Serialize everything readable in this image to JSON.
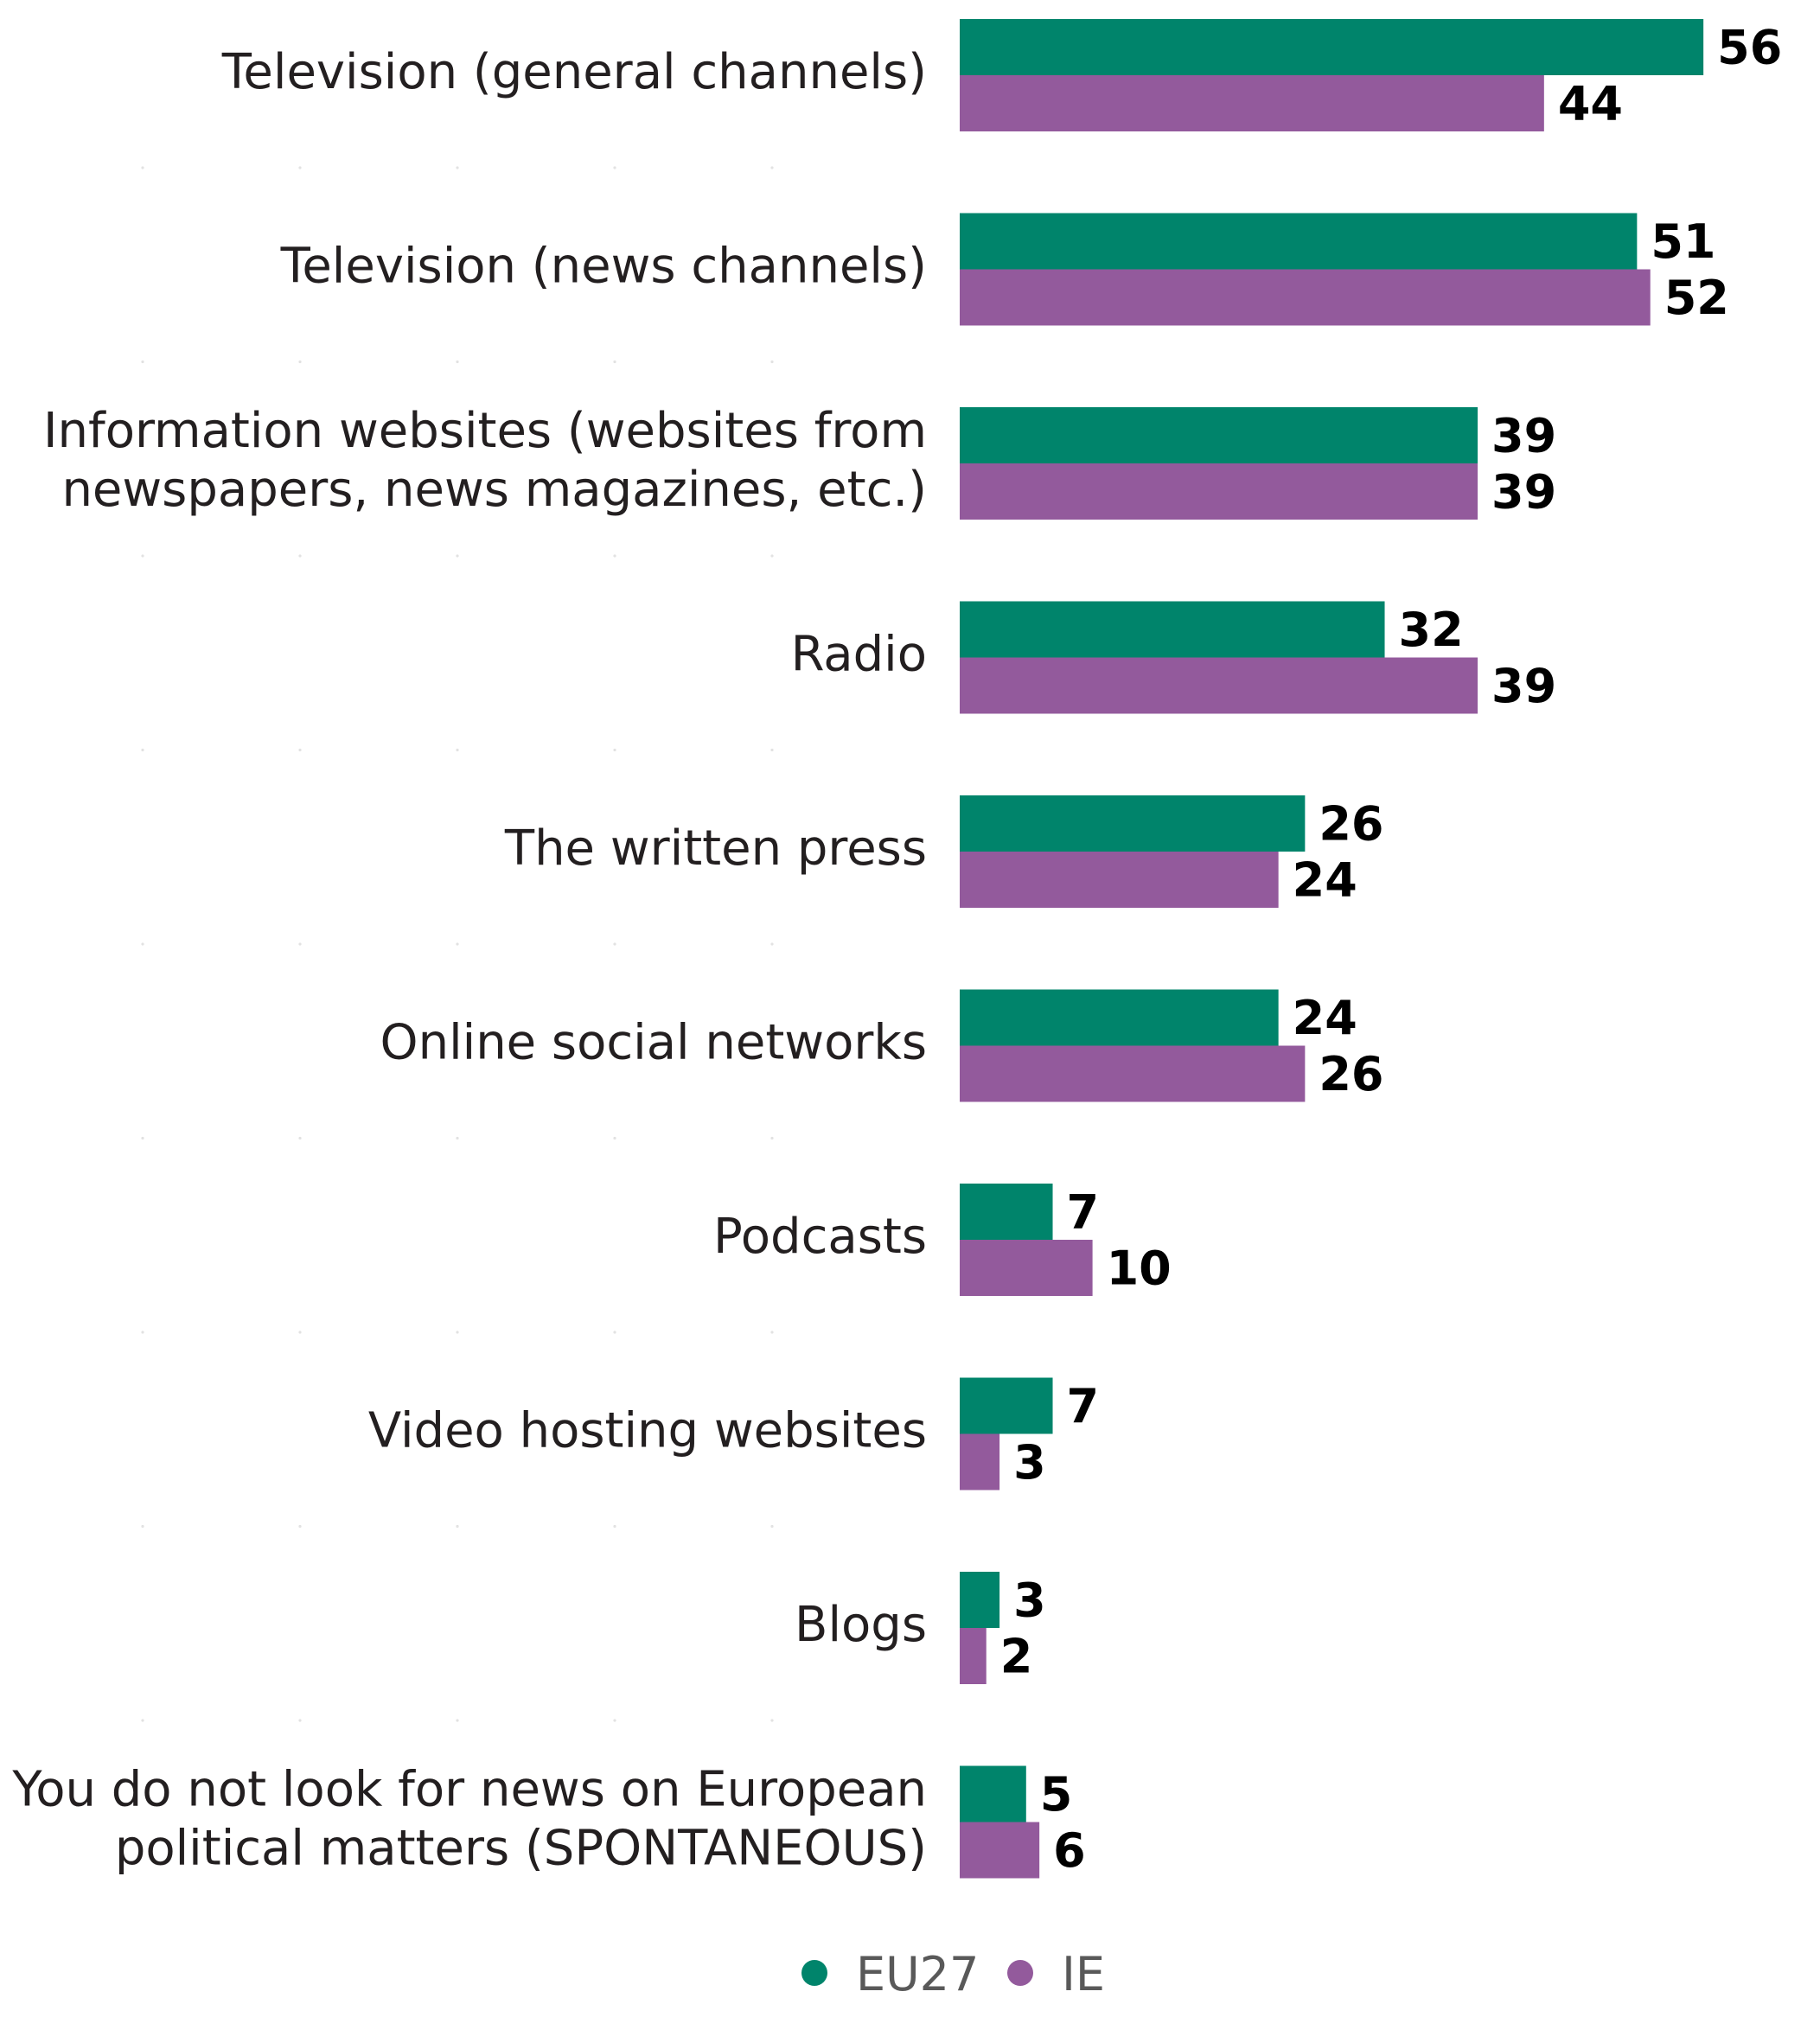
{
  "chart_data": {
    "type": "bar",
    "orientation": "horizontal",
    "categories": [
      [
        "Television (general channels)"
      ],
      [
        "Television (news channels)"
      ],
      [
        "Information websites (websites from",
        "newspapers, news magazines, etc.)"
      ],
      [
        "Radio"
      ],
      [
        "The written press"
      ],
      [
        "Online social networks"
      ],
      [
        "Podcasts"
      ],
      [
        "Video hosting websites"
      ],
      [
        "Blogs"
      ],
      [
        "You do not look for news on European",
        "political matters (SPONTANEOUS)"
      ]
    ],
    "series": [
      {
        "name": "EU27",
        "color": "#00846b",
        "values": [
          56,
          51,
          39,
          32,
          26,
          24,
          7,
          7,
          3,
          5
        ]
      },
      {
        "name": "IE",
        "color": "#935a9c",
        "values": [
          44,
          52,
          39,
          39,
          24,
          26,
          10,
          3,
          2,
          6
        ]
      }
    ],
    "xlim": [
      0,
      60
    ],
    "grid": false,
    "legend_position": "bottom-center"
  }
}
